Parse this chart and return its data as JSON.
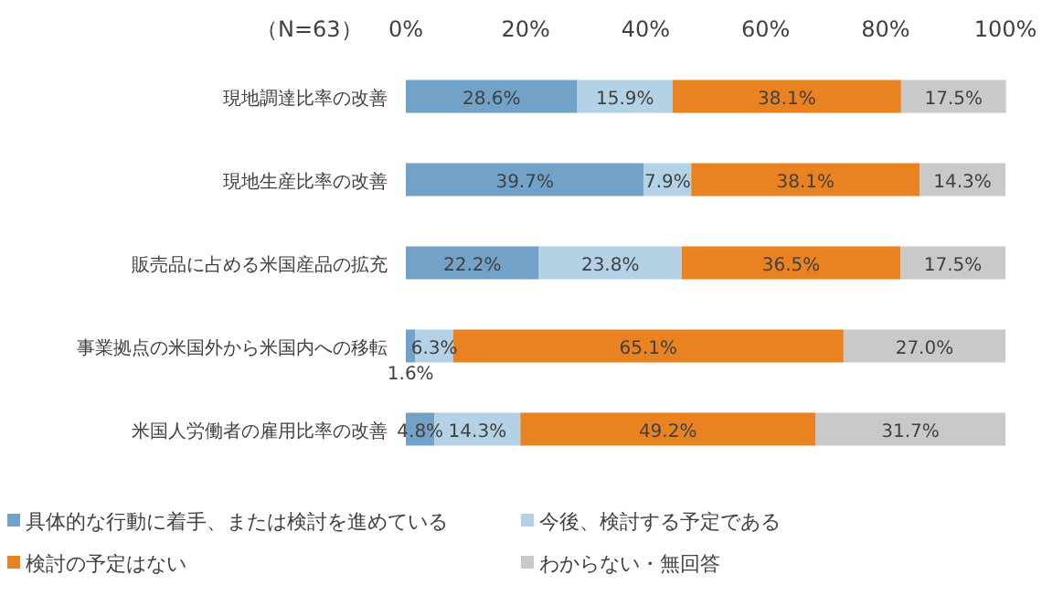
{
  "chart_data": {
    "type": "bar",
    "orientation": "horizontal",
    "stacked": true,
    "categories": [
      "現地調達比率の改善",
      "現地生産比率の改善",
      "販売品に占める米国産品の拡充",
      "事業拠点の米国外から米国内への移転",
      "米国人労働者の雇用比率の改善"
    ],
    "series": [
      {
        "name": "具体的な行動に着手、または検討を進めている",
        "color": "#73a2c9",
        "values": [
          28.6,
          39.7,
          22.2,
          1.6,
          4.8
        ],
        "value_labels": [
          "28.6%",
          "39.7%",
          "22.2%",
          "1.6%",
          "4.8%"
        ]
      },
      {
        "name": "今後、検討する予定である",
        "color": "#b3d2e6",
        "values": [
          15.9,
          7.9,
          23.8,
          6.3,
          14.3
        ],
        "value_labels": [
          "15.9%",
          "7.9%",
          "23.8%",
          "6.3%",
          "14.3%"
        ]
      },
      {
        "name": "検討の予定はない",
        "color": "#e98220",
        "values": [
          38.1,
          38.1,
          36.5,
          65.1,
          49.2
        ],
        "value_labels": [
          "38.1%",
          "38.1%",
          "36.5%",
          "65.1%",
          "49.2%"
        ]
      },
      {
        "name": "わからない・無回答",
        "color": "#c9c9c9",
        "values": [
          17.5,
          14.3,
          17.5,
          27.0,
          31.7
        ],
        "value_labels": [
          "17.5%",
          "14.3%",
          "17.5%",
          "27.0%",
          "31.7%"
        ]
      }
    ],
    "xlim": [
      0,
      100
    ],
    "xticks": [
      {
        "value": 0,
        "label": "0%"
      },
      {
        "value": 20,
        "label": "20%"
      },
      {
        "value": 40,
        "label": "40%"
      },
      {
        "value": 60,
        "label": "60%"
      },
      {
        "value": 80,
        "label": "80%"
      },
      {
        "value": 100,
        "label": "100%"
      }
    ],
    "annotations": [
      "（N=63）"
    ],
    "legend": "bottom"
  }
}
